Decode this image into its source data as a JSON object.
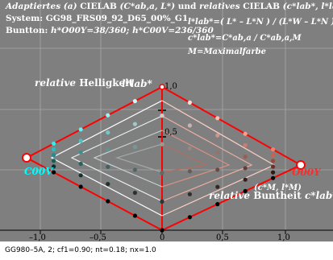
{
  "header": {
    "line1_a": "Adaptiertes",
    "line1_b": "(a)",
    "line1_c": "CIELAB",
    "line1_d": "(C*ab,a, L*)",
    "line1_e": "und",
    "line1_f": "relatives",
    "line1_g": "CIELAB",
    "line1_h": "(c*lab*, l*lab*)",
    "line2": "System: GG98_FRS09_92_D65_00%_G1",
    "line3_a": "Buntton:",
    "line3_b": "h*O00Y=38/360; h*C00V=236/360"
  },
  "formula": {
    "f1": "l*lab*=( L* – L*N ) / (L*W – L*N )",
    "f2": "c*lab*=C*ab,a / C*ab,a,M",
    "f3": "M=Maximalfarbe"
  },
  "labels": {
    "rel_light_a": "relative",
    "rel_light_b": "Helligkeit",
    "l_axis": "l*lab*",
    "c00v": "C00V",
    "o00y": "O00Y",
    "cm_lm": "(c*M, l*M)",
    "rel_chroma_a": "relative",
    "rel_chroma_b": "Buntheit",
    "c_axis": "c*lab*"
  },
  "axes": {
    "x_ticks": [
      "–1,0",
      "–0,5",
      "0",
      "0,5",
      "1,0"
    ],
    "y_ticks": [
      "1,0",
      "0,5"
    ]
  },
  "footer": "GG980–5A, 2; cf1=0.90; nt=0.18; nx=1.0",
  "colors": {
    "background": "#7f7f7f",
    "red": "#ff0000",
    "cyan": "#00ffff",
    "orange": "#ff7f3f"
  }
}
